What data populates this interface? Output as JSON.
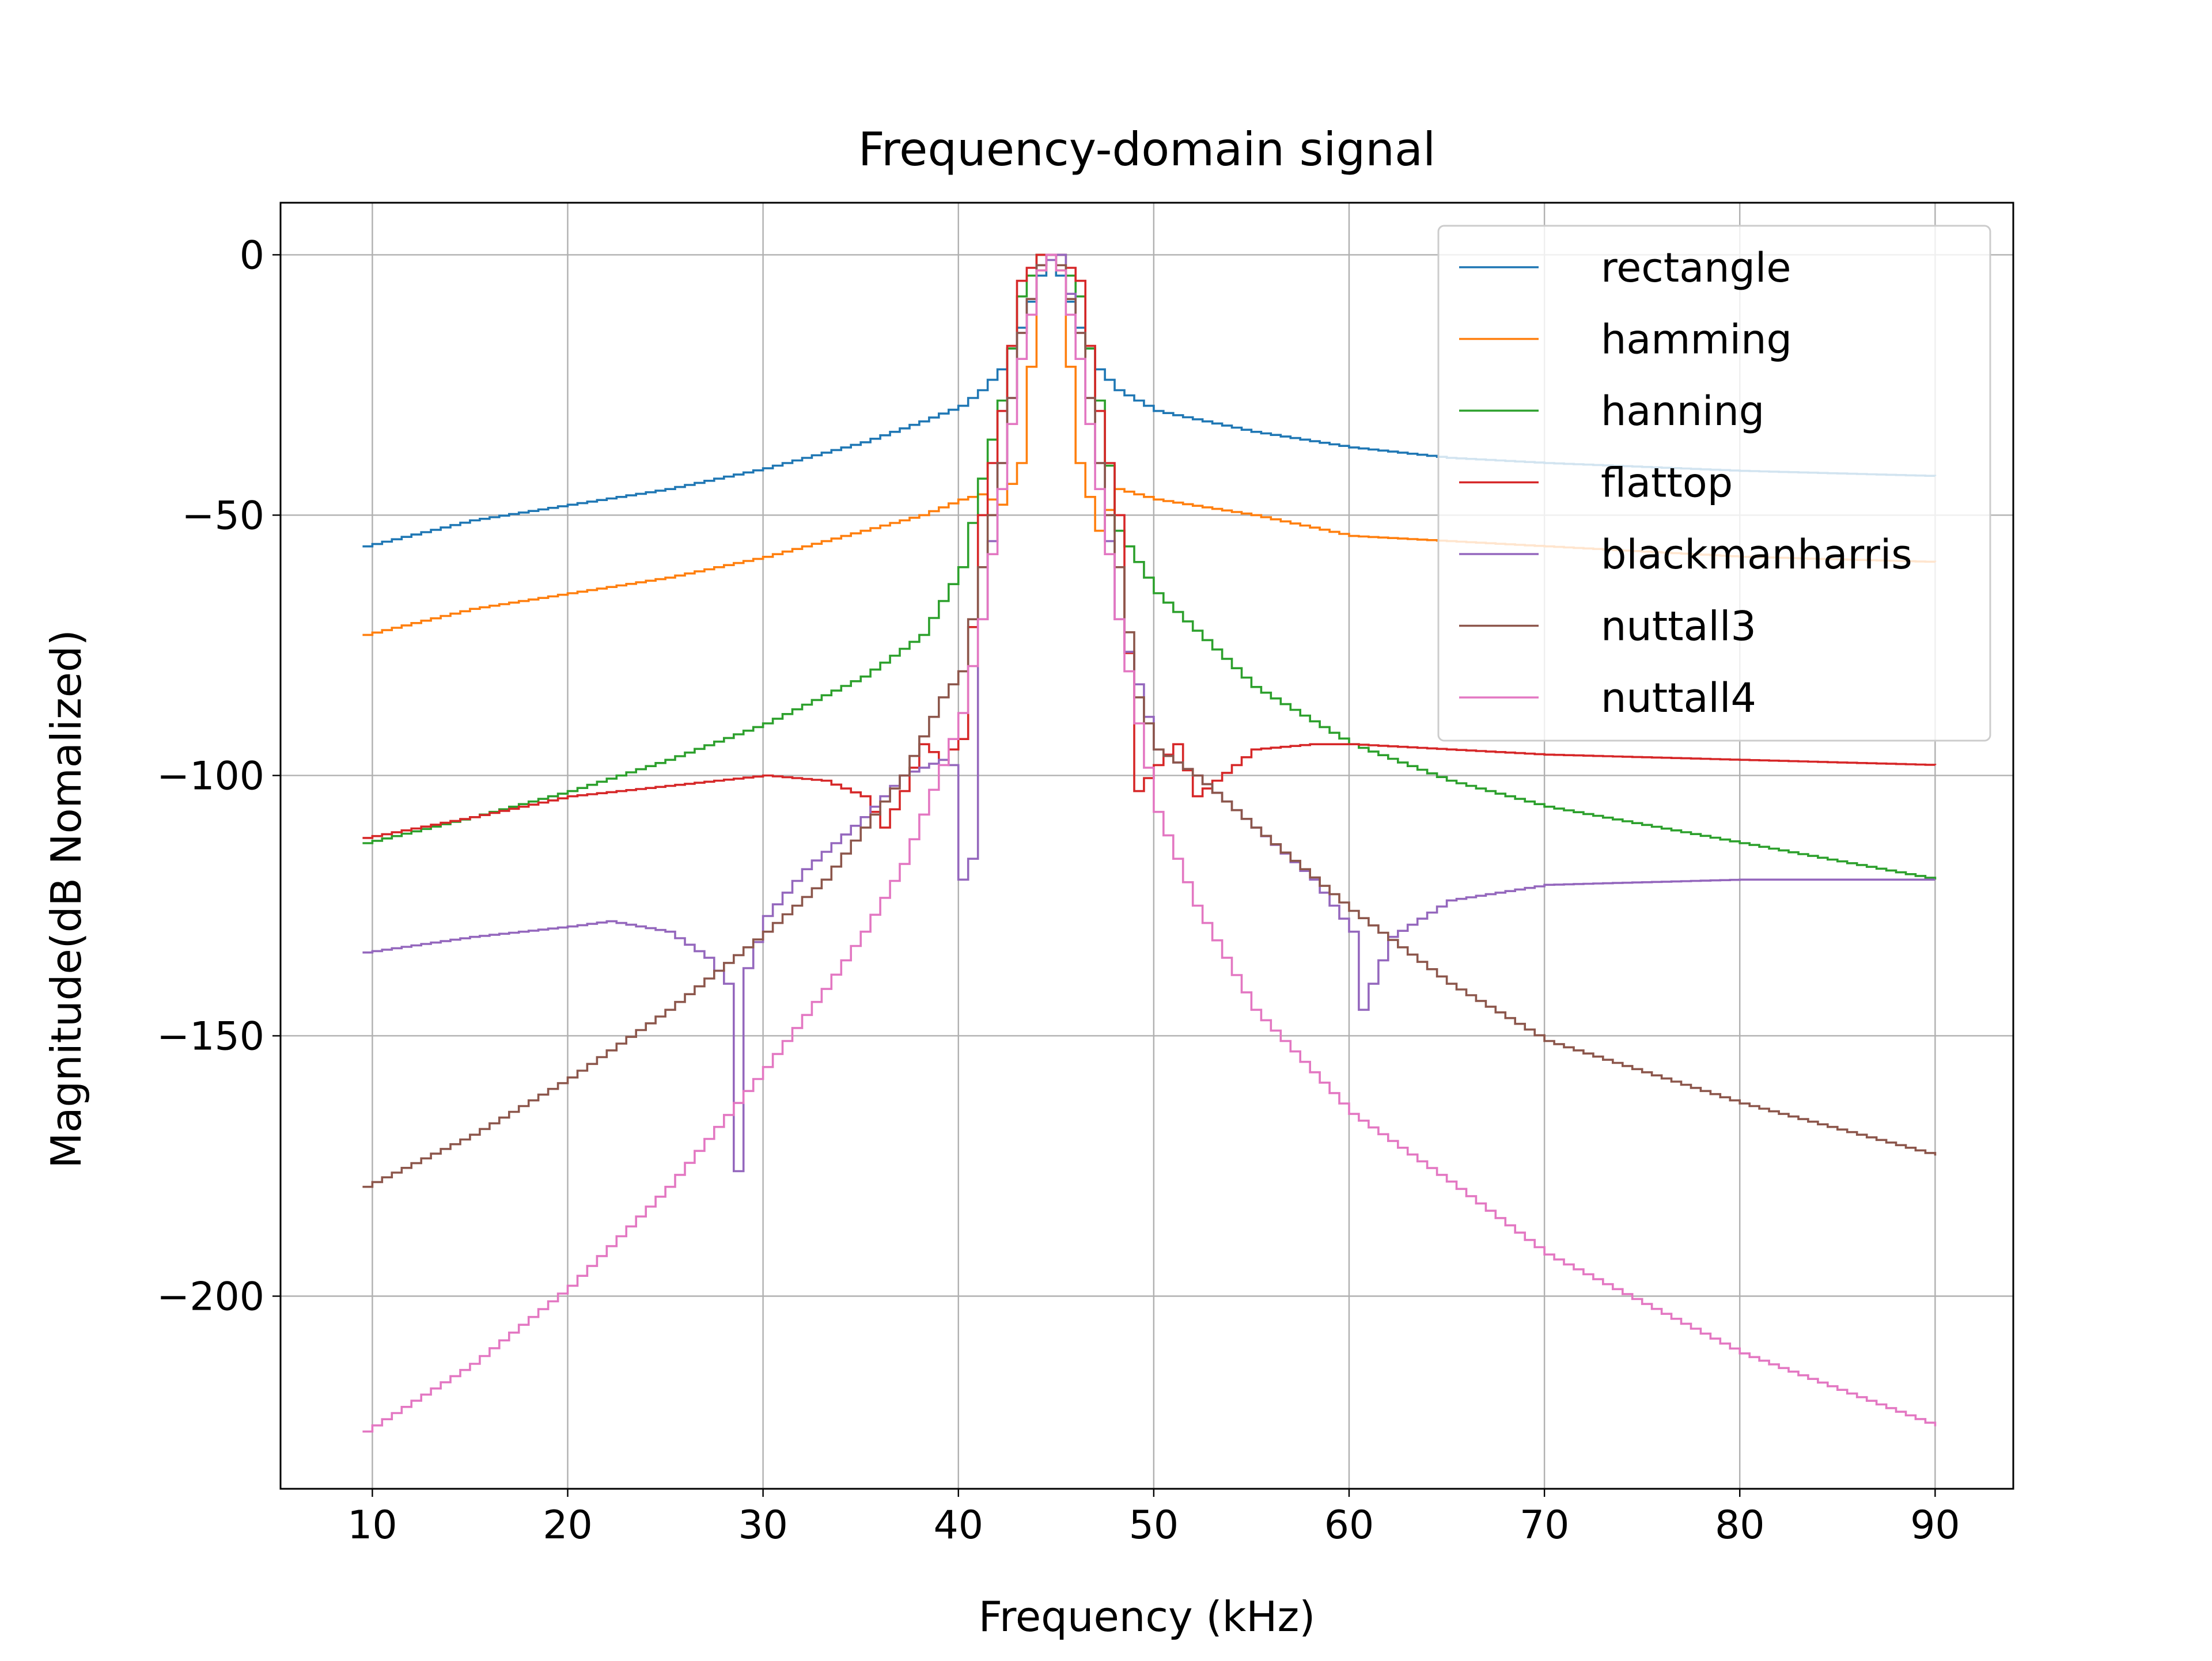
{
  "chart_data": {
    "type": "line",
    "step": true,
    "title": "Frequency-domain signal",
    "xlabel": "Frequency (kHz)",
    "ylabel": "Magnitude(dB Nomalized)",
    "xlim": [
      5.3,
      94
    ],
    "ylim": [
      -237,
      10
    ],
    "xticks": [
      10,
      20,
      30,
      40,
      50,
      60,
      70,
      80,
      90
    ],
    "xtick_labels": [
      "10",
      "20",
      "30",
      "40",
      "50",
      "60",
      "70",
      "80",
      "90"
    ],
    "yticks": [
      0,
      -50,
      -100,
      -150,
      -200
    ],
    "ytick_labels": [
      "0",
      "−50",
      "−100",
      "−150",
      "−200"
    ],
    "grid": true,
    "legend": {
      "position": "top-right",
      "entries": [
        "rectangle",
        "hamming",
        "hanning",
        "flattop",
        "blackmanharris",
        "nuttall3",
        "nuttall4"
      ]
    },
    "series": [
      {
        "name": "rectangle",
        "color": "#1f77b4",
        "x": [
          9.5,
          15,
          20,
          25,
          30,
          35,
          38,
          40,
          41,
          42,
          43,
          44,
          44.5,
          45,
          46,
          47,
          48,
          50,
          55,
          60,
          65,
          70,
          80,
          90
        ],
        "y": [
          -56,
          -51,
          -48,
          -45,
          -41,
          -36,
          -32,
          -29,
          -26,
          -22,
          -14,
          -4,
          0,
          -4,
          -14,
          -22,
          -26,
          -30,
          -34,
          -37,
          -39,
          -40,
          -41.5,
          -42.5
        ]
      },
      {
        "name": "hamming",
        "color": "#ff7f0e",
        "x": [
          9.5,
          15,
          20,
          25,
          30,
          35,
          38,
          40,
          41,
          42,
          43,
          44,
          44.5,
          45,
          46,
          47,
          48,
          50,
          55,
          60,
          65,
          70,
          80,
          90
        ],
        "y": [
          -73,
          -68,
          -65,
          -62,
          -58,
          -53,
          -50,
          -47,
          -46,
          -48,
          -40,
          -3,
          0,
          -3,
          -40,
          -53,
          -45,
          -47,
          -50,
          -54,
          -55,
          -56,
          -58,
          -59
        ]
      },
      {
        "name": "hanning",
        "color": "#2ca02c",
        "x": [
          9.5,
          15,
          20,
          25,
          30,
          35,
          38,
          40,
          41,
          42,
          43,
          44,
          44.5,
          45,
          46,
          47,
          48,
          50,
          55,
          60,
          65,
          70,
          80,
          90
        ],
        "y": [
          -113,
          -108,
          -103,
          -97,
          -90,
          -81,
          -73,
          -60,
          -43,
          -28,
          -8,
          0,
          0,
          0,
          -8,
          -28,
          -53,
          -65,
          -83,
          -94,
          -101,
          -106,
          -113,
          -120
        ]
      },
      {
        "name": "flattop",
        "color": "#d62728",
        "x": [
          9.5,
          15,
          20,
          25,
          30,
          33,
          35,
          36,
          37,
          38,
          39,
          40,
          41,
          42,
          43,
          44,
          45,
          46,
          47,
          48,
          49,
          50,
          51,
          52,
          55,
          58,
          60,
          65,
          70,
          80,
          90
        ],
        "y": [
          -112,
          -108,
          -104,
          -102,
          -100,
          -101,
          -104,
          -110,
          -103,
          -94,
          -97,
          -93,
          -50,
          -30,
          -5,
          0,
          0,
          -5,
          -30,
          -50,
          -103,
          -98,
          -94,
          -104,
          -95,
          -94,
          -94,
          -95,
          -96,
          -97,
          -98
        ]
      },
      {
        "name": "blackmanharris",
        "color": "#9467bd",
        "x": [
          9.5,
          15,
          20,
          22,
          25,
          27,
          28,
          28.5,
          29,
          30,
          32,
          35,
          37,
          39,
          39.5,
          40,
          40.5,
          41,
          42,
          43,
          44,
          45,
          46,
          47,
          48,
          50,
          52,
          55,
          58,
          60,
          60.5,
          61,
          62,
          65,
          70,
          80,
          90
        ],
        "y": [
          -134,
          -131,
          -129,
          -128,
          -130,
          -135,
          -140,
          -176,
          -137,
          -127,
          -118,
          -108,
          -100,
          -97,
          -98,
          -120,
          -116,
          -70,
          -40,
          -15,
          -2,
          0,
          -15,
          -40,
          -70,
          -95,
          -100,
          -110,
          -120,
          -130,
          -145,
          -140,
          -131,
          -124,
          -121,
          -120,
          -120
        ]
      },
      {
        "name": "nuttall3",
        "color": "#8c564b",
        "x": [
          9.5,
          15,
          20,
          25,
          28,
          30,
          33,
          35,
          37,
          39,
          40,
          41,
          42,
          43,
          44,
          44.5,
          45,
          46,
          47,
          48,
          49,
          50,
          52,
          55,
          60,
          65,
          70,
          80,
          90
        ],
        "y": [
          -179,
          -169,
          -158,
          -145,
          -136,
          -130,
          -120,
          -110,
          -100,
          -85,
          -80,
          -60,
          -40,
          -15,
          -2,
          0,
          -2,
          -15,
          -40,
          -60,
          -85,
          -95,
          -100,
          -110,
          -126,
          -140,
          -151,
          -163,
          -173
        ]
      },
      {
        "name": "nuttall4",
        "color": "#e377c2",
        "x": [
          9.5,
          15,
          20,
          25,
          30,
          33,
          35,
          37,
          39,
          40,
          41,
          42,
          43,
          44,
          44.5,
          45,
          46,
          47,
          48,
          49,
          50,
          52,
          55,
          60,
          65,
          70,
          80,
          90
        ],
        "y": [
          -226,
          -213,
          -198,
          -179,
          -156,
          -141,
          -130,
          -117,
          -98,
          -88,
          -70,
          -45,
          -20,
          -3,
          0,
          -3,
          -20,
          -45,
          -70,
          -90,
          -107,
          -125,
          -145,
          -165,
          -178,
          -192,
          -211,
          -225
        ]
      }
    ]
  }
}
